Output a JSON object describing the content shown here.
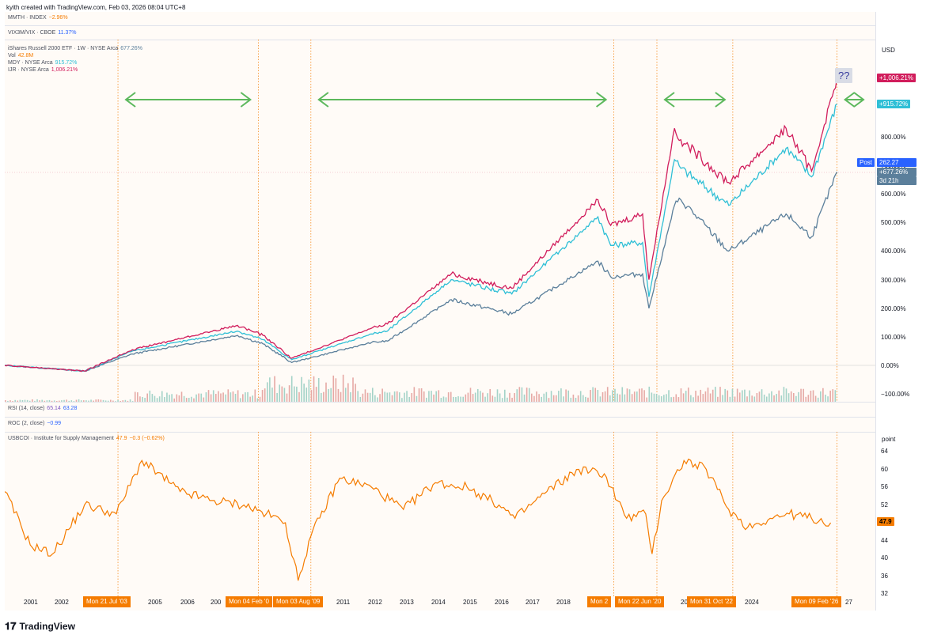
{
  "credit": "kyith created with TradingView.com, Feb 03, 2026 08:04 UTC+8",
  "brand": "TradingView",
  "colors": {
    "iwm": "#5b7f9b",
    "mdy": "#2fbfd6",
    "ijr": "#d11d5c",
    "orange": "#f57c00",
    "green": "#5cb85c",
    "blue": "#2962ff"
  },
  "legends": {
    "mmth": {
      "name": "MMTH · INDEX",
      "value": "−2.96%"
    },
    "vix": {
      "name": "VIX3M/VIX · CBOE",
      "value": "11.37%"
    },
    "iwm": {
      "name": "iShares Russell 2000 ETF · 1W · NYSE Arca",
      "value": "677.26%"
    },
    "vol": {
      "name": "Vol",
      "value": "42.8M"
    },
    "mdy": {
      "name": "MDY · NYSE Arca",
      "value": "915.72%"
    },
    "ijr": {
      "name": "IJR · NYSE Arca",
      "value": "1,006.21%"
    },
    "rsi": {
      "name": "RSI (14, close)",
      "value": "65.14",
      "value2": "63.28"
    },
    "roc": {
      "name": "ROC (2, close)",
      "value": "−0.99"
    },
    "ism": {
      "name": "USBCOI · Institute for Supply Management",
      "value": "47.9",
      "chg": "−0.3 (−0.62%)"
    }
  },
  "axis": {
    "main_unit": "USD",
    "main_ticks": [
      "800.00%",
      "700.00%",
      "600.00%",
      "500.00%",
      "400.00%",
      "300.00%",
      "200.00%",
      "100.00%",
      "0.00%",
      "−100.00%"
    ],
    "ism_unit": "point",
    "ism_ticks": [
      "64",
      "60",
      "56",
      "52",
      "48",
      "44",
      "40",
      "36",
      "32"
    ]
  },
  "badges": {
    "ijr": "+1,006.21%",
    "mdy": "+915.72%",
    "post_label": "Post",
    "post_value": "262.27",
    "iwm": "+677.26%",
    "countdown": "3d 21h",
    "ism": "47.9",
    "question": "??"
  },
  "time_axis": {
    "years": [
      "2001",
      "2002",
      "2005",
      "2006",
      "200",
      "2011",
      "2012",
      "2013",
      "2014",
      "2015",
      "2016",
      "2017",
      "2018",
      "20",
      "2024",
      "202",
      "27"
    ],
    "highlights": [
      "Mon 21 Jul '03",
      "Mon 04 Feb '0",
      "Mon 03 Aug '09",
      "Mon 2",
      "Mon 22 Jun '20",
      "Mon 31 Oct '22",
      "Mon 09 Feb '26"
    ]
  },
  "chart_data": [
    {
      "type": "line",
      "ylabel": "USD",
      "ylim": [
        -100,
        1050
      ],
      "x": [
        2000.0,
        2002.5,
        2004.0,
        2007.3,
        2008.1,
        2009.0,
        2011.5,
        2012.0,
        2014.0,
        2015.9,
        2018.6,
        2019.0,
        2020.0,
        2020.2,
        2021.0,
        2021.2,
        2022.7,
        2024.5,
        2025.3,
        2026.1
      ],
      "series": [
        {
          "name": "iShares Russell 2000 ETF · 1W · NYSE Arca",
          "values": [
            0,
            -20,
            40,
            105,
            75,
            10,
            80,
            85,
            230,
            180,
            365,
            310,
            320,
            200,
            560,
            580,
            400,
            530,
            450,
            677
          ]
        },
        {
          "name": "MDY · NYSE Arca",
          "values": [
            0,
            -20,
            50,
            120,
            90,
            20,
            110,
            120,
            300,
            250,
            520,
            420,
            430,
            240,
            720,
            690,
            560,
            760,
            660,
            915
          ]
        },
        {
          "name": "IJR · NYSE Arca",
          "values": [
            0,
            -20,
            55,
            140,
            105,
            25,
            130,
            145,
            320,
            270,
            580,
            490,
            530,
            300,
            830,
            790,
            640,
            830,
            680,
            1006
          ]
        }
      ]
    },
    {
      "type": "line",
      "ylabel": "point",
      "ylim": [
        32,
        66
      ],
      "x": [
        2000.0,
        2000.8,
        2001.5,
        2002.5,
        2003.5,
        2004.3,
        2005.5,
        2006.5,
        2007.5,
        2008.2,
        2008.8,
        2009.2,
        2009.6,
        2010.5,
        2011.5,
        2012.5,
        2013.5,
        2014.5,
        2015.5,
        2016.0,
        2017.0,
        2018.0,
        2018.8,
        2019.5,
        2020.1,
        2020.3,
        2020.6,
        2021.3,
        2022.0,
        2022.7,
        2023.3,
        2024.0,
        2024.6,
        2025.3,
        2025.9
      ],
      "series": [
        {
          "name": "USBCOI · Institute for Supply Management",
          "values": [
            55,
            43,
            41,
            52,
            50,
            62,
            55,
            53,
            52,
            50,
            48,
            35,
            45,
            58,
            56,
            51,
            57,
            56,
            52,
            49,
            55,
            60,
            59,
            49,
            50,
            41,
            53,
            62,
            60,
            51,
            47,
            49,
            50,
            49,
            48
          ]
        }
      ]
    }
  ]
}
